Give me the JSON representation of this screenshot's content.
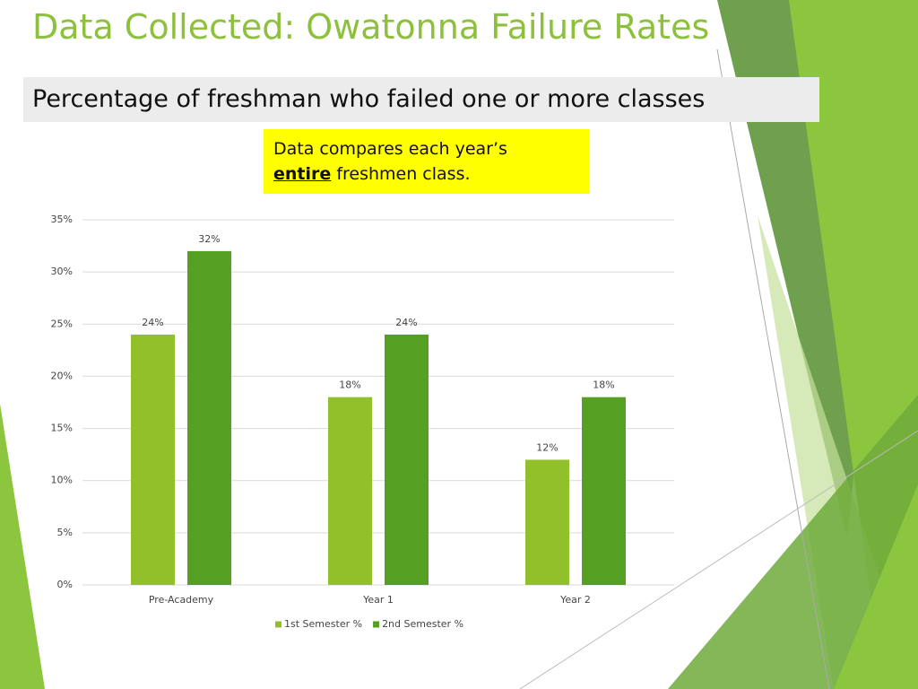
{
  "chart_data": {
    "type": "bar",
    "title": "Data Collected: Owatonna Failure Rates",
    "subtitle": "Percentage of freshman who failed one or more classes",
    "note": {
      "line1": "Data compares each year’s",
      "emphasis": "entire",
      "rest": "freshmen class."
    },
    "categories": [
      "Pre-Academy",
      "Year 1",
      "Year 2"
    ],
    "series": [
      {
        "name": "1st Semester %",
        "color": "#92c02b",
        "values": [
          24,
          18,
          12
        ],
        "value_labels": [
          "24%",
          "18%",
          "12%"
        ]
      },
      {
        "name": "2nd Semester %",
        "color": "#55a022",
        "values": [
          32,
          24,
          18
        ],
        "value_labels": [
          "32%",
          "24%",
          "18%"
        ]
      }
    ],
    "ylim": [
      0,
      35
    ],
    "yticks": [
      {
        "value": 0,
        "label": "0%"
      },
      {
        "value": 5,
        "label": "5%"
      },
      {
        "value": 10,
        "label": "10%"
      },
      {
        "value": 15,
        "label": "15%"
      },
      {
        "value": 20,
        "label": "20%"
      },
      {
        "value": 25,
        "label": "25%"
      },
      {
        "value": 30,
        "label": "30%"
      },
      {
        "value": 35,
        "label": "35%"
      }
    ],
    "grid": true,
    "legend": "bottom"
  }
}
